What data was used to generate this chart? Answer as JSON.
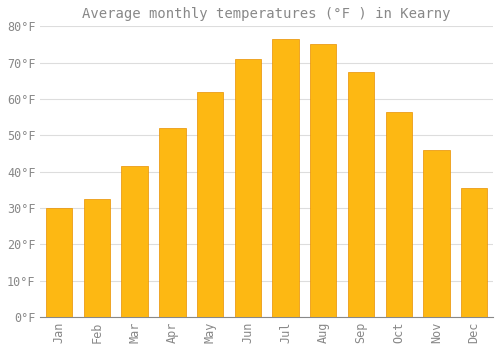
{
  "title": "Average monthly temperatures (°F ) in Kearny",
  "months": [
    "Jan",
    "Feb",
    "Mar",
    "Apr",
    "May",
    "Jun",
    "Jul",
    "Aug",
    "Sep",
    "Oct",
    "Nov",
    "Dec"
  ],
  "values": [
    30,
    32.5,
    41.5,
    52,
    62,
    71,
    76.5,
    75,
    67.5,
    56.5,
    46,
    35.5
  ],
  "bar_color_face": "#FDB813",
  "bar_color_edge": "#E89000",
  "background_color": "#FFFFFF",
  "grid_color": "#DDDDDD",
  "text_color": "#888888",
  "ylim": [
    0,
    80
  ],
  "yticks": [
    0,
    10,
    20,
    30,
    40,
    50,
    60,
    70,
    80
  ],
  "ytick_labels": [
    "0°F",
    "10°F",
    "20°F",
    "30°F",
    "40°F",
    "50°F",
    "60°F",
    "70°F",
    "80°F"
  ],
  "title_fontsize": 10,
  "tick_fontsize": 8.5,
  "font_family": "monospace",
  "bar_width": 0.7
}
